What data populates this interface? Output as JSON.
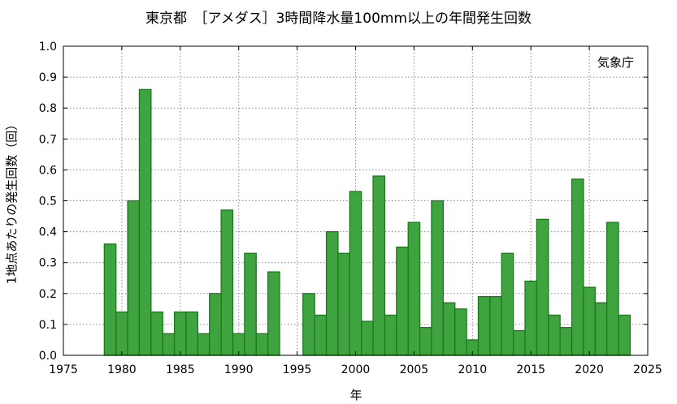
{
  "chart_data": {
    "type": "bar",
    "title": "東京都　［アメダス］3時間降水量100mm以上の年間発生回数",
    "xlabel": "年",
    "ylabel": "1地点あたりの発生回数（回）",
    "source": "気象庁",
    "xlim": [
      1975,
      2025
    ],
    "ylim": [
      0,
      1.0
    ],
    "x_ticks": [
      "1975",
      "1980",
      "1985",
      "1990",
      "1995",
      "2000",
      "2005",
      "2010",
      "2015",
      "2020",
      "2025"
    ],
    "y_ticks": [
      "0.0",
      "0.1",
      "0.2",
      "0.3",
      "0.4",
      "0.5",
      "0.6",
      "0.7",
      "0.8",
      "0.9",
      "1.0"
    ],
    "grid": true,
    "bar_color": "#3fa33f",
    "bar_edge_color": "#1a7a1a",
    "x": [
      1979,
      1980,
      1981,
      1982,
      1983,
      1984,
      1985,
      1986,
      1987,
      1988,
      1989,
      1990,
      1991,
      1992,
      1993,
      1994,
      1995,
      1996,
      1997,
      1998,
      1999,
      2000,
      2001,
      2002,
      2003,
      2004,
      2005,
      2006,
      2007,
      2008,
      2009,
      2010,
      2011,
      2012,
      2013,
      2014,
      2015,
      2016,
      2017,
      2018,
      2019,
      2020,
      2021,
      2022,
      2023
    ],
    "values": [
      0.36,
      0.14,
      0.5,
      0.86,
      0.14,
      0.07,
      0.14,
      0.14,
      0.07,
      0.2,
      0.47,
      0.07,
      0.33,
      0.07,
      0.27,
      0,
      0,
      0.2,
      0.13,
      0.4,
      0.33,
      0.53,
      0.11,
      0.58,
      0.13,
      0.35,
      0.43,
      0.09,
      0.5,
      0.17,
      0.15,
      0.05,
      0.19,
      0.19,
      0.33,
      0.08,
      0.24,
      0.44,
      0.13,
      0.09,
      0.57,
      0.22,
      0.17,
      0.43,
      0.13
    ]
  }
}
